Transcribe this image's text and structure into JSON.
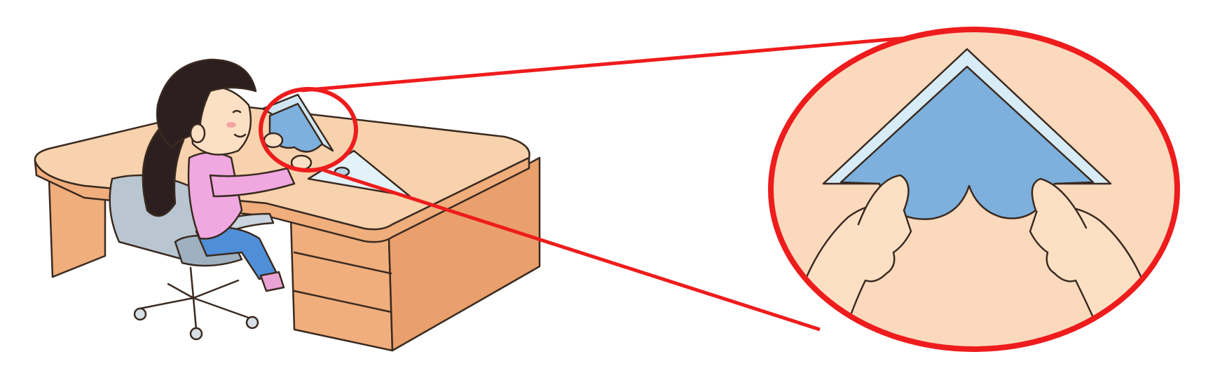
{
  "scene": {
    "subject": "girl-at-desk-folding-paper",
    "callout": "zoomed-view-of-hands-and-triangle-ruler"
  },
  "colors": {
    "callout_outline": "#ee1c1c",
    "desk_top": "#f7d2ad",
    "desk_side": "#efae7c",
    "paper_blue": "#7db0dc",
    "ruler_edge": "#cfe6f2",
    "sweater_pink": "#f0a8e0",
    "hair": "#2b1f1f",
    "skin": "#fde0c4",
    "chair_grey": "#b9c6d2",
    "callout_bg": "#fbd9bd"
  }
}
